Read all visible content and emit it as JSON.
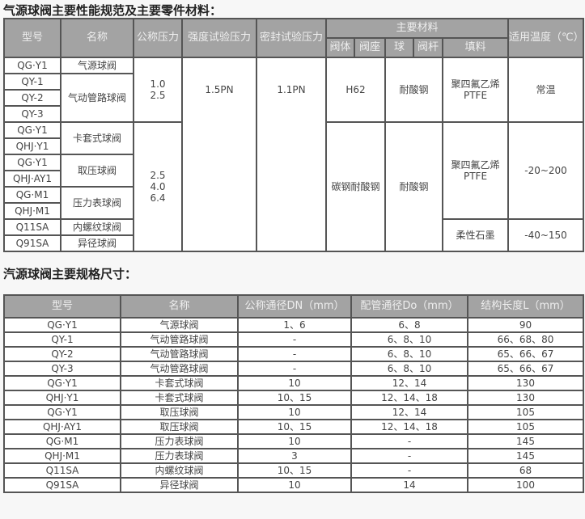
{
  "performance": {
    "title": "气源球阀主要性能规范及主要零件材料：",
    "headers": {
      "model": "型号",
      "name": "名称",
      "nominal_pressure": "公称压力",
      "strength_test": "强度试验压力",
      "seal_test": "密封试验压力",
      "materials": "主要材料",
      "body": "阀体",
      "seat": "阀座",
      "ball": "球",
      "stem": "阀杆",
      "packing": "填料",
      "temperature": "适用温度（℃）"
    },
    "models": [
      "QG·Y1",
      "QY-1",
      "QY-2",
      "QY-3",
      "QG·Y1",
      "QHJ·Y1",
      "QG·Y1",
      "QHJ·AY1",
      "QG·M1",
      "QHJ·M1",
      "Q11SA",
      "Q91SA"
    ],
    "names": [
      "气源球阀",
      "气动管路球阀",
      "卡套式球阀",
      "取压球阀",
      "压力表球阀",
      "内螺纹球阀",
      "异径球阀"
    ],
    "pressure_groups": [
      "1.0\n2.5",
      "2.5\n4.0\n6.4"
    ],
    "strength": "1.5PN",
    "seal": "1.1PN",
    "body_seat": [
      "H62",
      "碳钢耐酸钢"
    ],
    "ball_stem": [
      "耐酸钢",
      "耐酸钢"
    ],
    "packing": [
      "聚四氟乙烯PTFE",
      "聚四氟乙烯PTFE",
      "柔性石墨"
    ],
    "temperature": [
      "常温",
      "-20~200",
      "-40~150"
    ]
  },
  "dimensions": {
    "title": "汽源球阀主要规格尺寸：",
    "headers": [
      "型号",
      "名称",
      "公称通径DN（mm）",
      "配管通径Do（mm）",
      "结构长度L（mm）"
    ],
    "rows": [
      [
        "QG·Y1",
        "气源球阀",
        "1、6",
        "6、8",
        "90"
      ],
      [
        "QY-1",
        "气动管路球阀",
        "-",
        "6、8、10",
        "66、68、80"
      ],
      [
        "QY-2",
        "气动管路球阀",
        "-",
        "6、8、10",
        "65、66、67"
      ],
      [
        "QY-3",
        "气动管路球阀",
        "-",
        "6、8、10",
        "65、66、67"
      ],
      [
        "QG·Y1",
        "卡套式球阀",
        "10",
        "12、14",
        "130"
      ],
      [
        "QHJ·Y1",
        "卡套式球阀",
        "10、15",
        "12、14、18",
        "130"
      ],
      [
        "QG·Y1",
        "取压球阀",
        "10",
        "12、14",
        "105"
      ],
      [
        "QHJ·AY1",
        "取压球阀",
        "10、15",
        "12、14、18",
        "105"
      ],
      [
        "QG·M1",
        "压力表球阀",
        "10",
        "-",
        "145"
      ],
      [
        "QHJ·M1",
        "压力表球阀",
        "3",
        "-",
        "145"
      ],
      [
        "Q11SA",
        "内螺纹球阀",
        "10、15",
        "-",
        "68"
      ],
      [
        "Q91SA",
        "异径球阀",
        "10",
        "14",
        "100"
      ]
    ]
  }
}
